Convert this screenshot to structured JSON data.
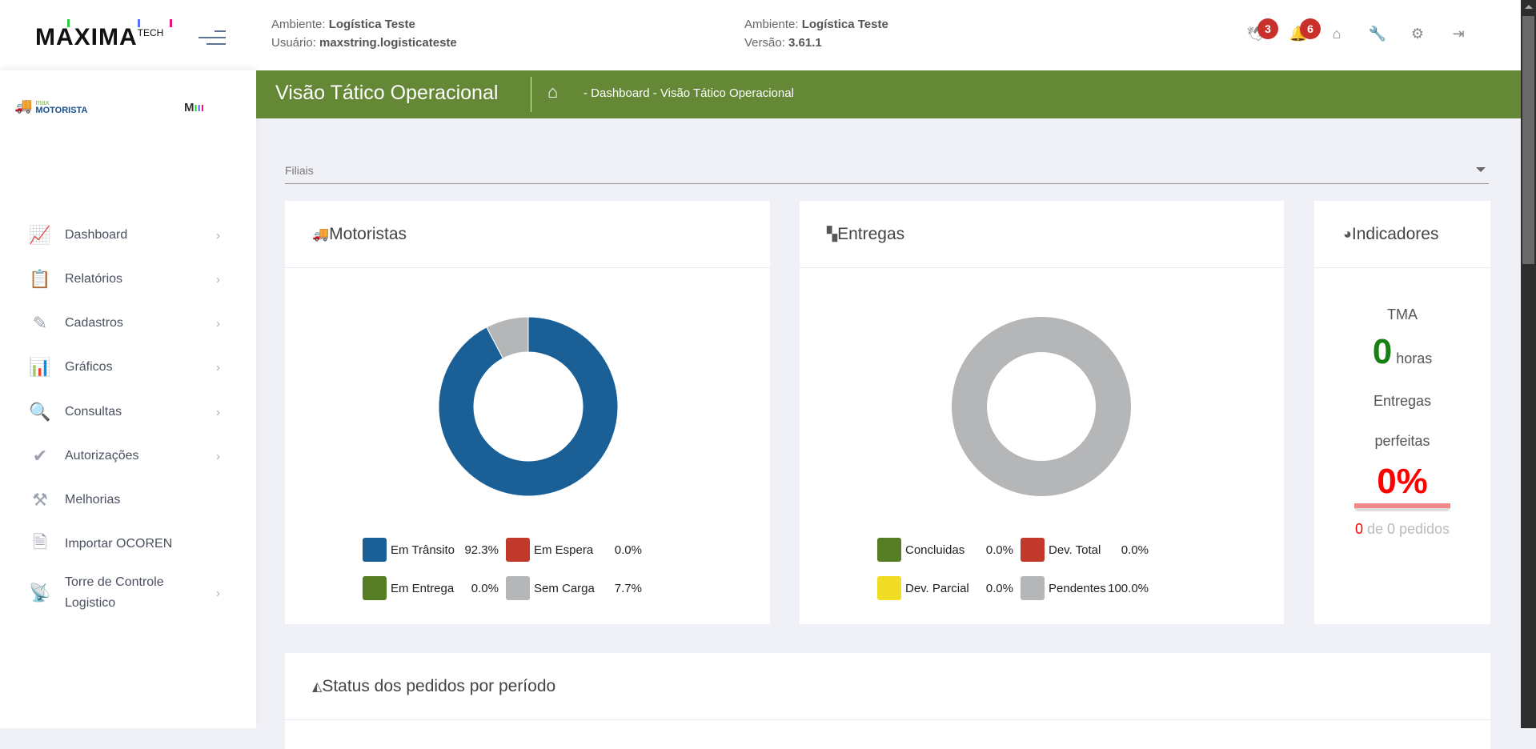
{
  "header": {
    "logo_text": "MAXIMA",
    "logo_sup": "TECH",
    "env_label": "Ambiente:",
    "env_value": "Logística Teste",
    "user_label": "Usuário:",
    "user_value": "maxstring.logisticateste",
    "env2_label": "Ambiente:",
    "env2_value": "Logística Teste",
    "version_label": "Versão:",
    "version_value": "3.61.1",
    "icons": [
      {
        "name": "bird-icon",
        "badge": "3"
      },
      {
        "name": "bell-icon",
        "badge": "6"
      },
      {
        "name": "home-icon"
      },
      {
        "name": "wrench-icon"
      },
      {
        "name": "gear-icon"
      },
      {
        "name": "logout-icon"
      }
    ]
  },
  "sidebar": {
    "brand_small": "max",
    "brand": "MOTORISTA",
    "brand_m": "M",
    "items": [
      {
        "label": "Dashboard",
        "icon": "presentation-chart-icon",
        "chevron": true
      },
      {
        "label": "Relatórios",
        "icon": "clipboard-icon",
        "chevron": true
      },
      {
        "label": "Cadastros",
        "icon": "pencil-icon",
        "chevron": true
      },
      {
        "label": "Gráficos",
        "icon": "bar-chart-icon",
        "chevron": true
      },
      {
        "label": "Consultas",
        "icon": "search-icon",
        "chevron": true
      },
      {
        "label": "Autorizações",
        "icon": "double-check-icon",
        "chevron": true
      },
      {
        "label": "Melhorias",
        "icon": "magic-wand-icon",
        "chevron": false
      },
      {
        "label": "Importar OCOREN",
        "icon": "document-icon",
        "chevron": false
      },
      {
        "label": "Torre de Controle Logistico",
        "icon": "antenna-icon",
        "chevron": true
      }
    ]
  },
  "page": {
    "title": "Visão Tático Operacional",
    "breadcrumb": "- Dashboard - Visão Tático Operacional"
  },
  "filter": {
    "label": "Filiais"
  },
  "motoristas": {
    "title": "Motoristas",
    "legend": [
      {
        "label": "Em Trânsito",
        "value": "92.3%",
        "color": "#1a5f96"
      },
      {
        "label": "Em Espera",
        "value": "0.0%",
        "color": "#c0392b"
      },
      {
        "label": "Em Entrega",
        "value": "0.0%",
        "color": "#567d23"
      },
      {
        "label": "Sem Carga",
        "value": "7.7%",
        "color": "#b5b6b8"
      }
    ]
  },
  "entregas": {
    "title": "Entregas",
    "legend": [
      {
        "label": "Concluidas",
        "value": "0.0%",
        "color": "#567d23"
      },
      {
        "label": "Dev. Total",
        "value": "0.0%",
        "color": "#c0392b"
      },
      {
        "label": "Dev. Parcial",
        "value": "0.0%",
        "color": "#f0dc24"
      },
      {
        "label": "Pendentes",
        "value": "100.0%",
        "color": "#b5b6b8"
      }
    ]
  },
  "chart_data": [
    {
      "type": "pie",
      "categories": [
        "Em Trânsito",
        "Em Espera",
        "Em Entrega",
        "Sem Carga"
      ],
      "values": [
        92.3,
        0,
        0,
        7.7
      ],
      "title": "Motoristas"
    },
    {
      "type": "pie",
      "categories": [
        "Concluidas",
        "Dev. Total",
        "Dev. Parcial",
        "Pendentes"
      ],
      "values": [
        0,
        0,
        0,
        100
      ],
      "title": "Entregas"
    }
  ],
  "indicadores": {
    "title": "Indicadores",
    "tma_label": "TMA",
    "tma_value": "0",
    "tma_unit": "horas",
    "entregas_label1": "Entregas",
    "entregas_label2": "perfeitas",
    "perfect_pct": "0%",
    "perfect_fraction": 0,
    "count_done": "0",
    "count_rest": "de 0 pedidos"
  },
  "status": {
    "title": "Status dos pedidos por período"
  }
}
